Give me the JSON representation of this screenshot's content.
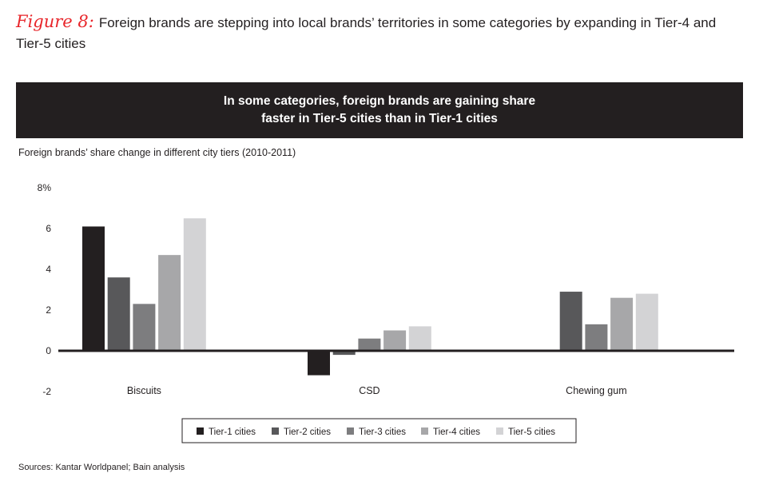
{
  "header": {
    "figure_label": "Figure 8:",
    "title": "Foreign brands are stepping into local brands’ territories in some categories by expanding in Tier-4 and Tier-5 cities"
  },
  "banner": {
    "line1": "In some categories, foreign brands are gaining share",
    "line2": "faster in Tier-5 cities than in Tier-1 cities"
  },
  "subtitle": "Foreign brands’ share change in different city tiers (2010-2011)",
  "source": "Sources: Kantar Worldpanel; Bain analysis",
  "chart_data": {
    "type": "bar",
    "categories": [
      "Biscuits",
      "CSD",
      "Chewing gum"
    ],
    "series": [
      {
        "name": "Tier-1 cities",
        "color": "#231f20",
        "values": [
          6.1,
          -1.2,
          null
        ]
      },
      {
        "name": "Tier-2 cities",
        "color": "#58585a",
        "values": [
          3.6,
          -0.2,
          2.9
        ]
      },
      {
        "name": "Tier-3 cities",
        "color": "#7d7d7f",
        "values": [
          2.3,
          0.6,
          1.3
        ]
      },
      {
        "name": "Tier-4 cities",
        "color": "#a7a7a9",
        "values": [
          4.7,
          1.0,
          2.6
        ]
      },
      {
        "name": "Tier-5 cities",
        "color": "#d3d3d5",
        "values": [
          6.5,
          1.2,
          2.8
        ]
      }
    ],
    "yticks": [
      "8%",
      "6",
      "4",
      "2",
      "0",
      "-2"
    ],
    "ylim": [
      -2,
      8
    ],
    "legend_position": "bottom"
  }
}
